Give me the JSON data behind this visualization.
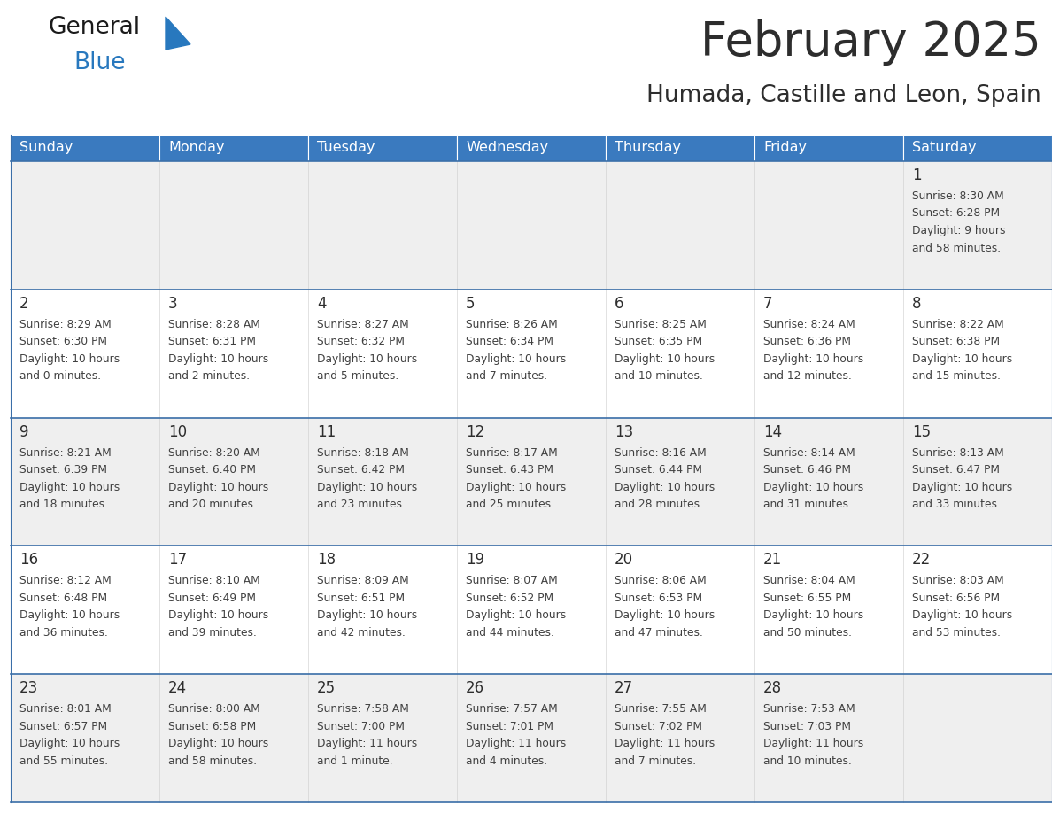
{
  "title": "February 2025",
  "subtitle": "Humada, Castille and Leon, Spain",
  "title_color": "#2d2d2d",
  "subtitle_color": "#2d2d2d",
  "header_bg_color": "#3a7abf",
  "header_text_color": "#ffffff",
  "day_names": [
    "Sunday",
    "Monday",
    "Tuesday",
    "Wednesday",
    "Thursday",
    "Friday",
    "Saturday"
  ],
  "odd_row_bg": "#efefef",
  "even_row_bg": "#ffffff",
  "cell_border_color": "#3a6ea8",
  "date_color": "#2d2d2d",
  "info_color": "#404040",
  "logo_general_color": "#1a1a1a",
  "logo_blue_color": "#2878be",
  "calendar_data": [
    [
      null,
      null,
      null,
      null,
      null,
      null,
      {
        "day": "1",
        "sunrise": "8:30 AM",
        "sunset": "6:28 PM",
        "daylight_line1": "Daylight: 9 hours",
        "daylight_line2": "and 58 minutes."
      }
    ],
    [
      {
        "day": "2",
        "sunrise": "8:29 AM",
        "sunset": "6:30 PM",
        "daylight_line1": "Daylight: 10 hours",
        "daylight_line2": "and 0 minutes."
      },
      {
        "day": "3",
        "sunrise": "8:28 AM",
        "sunset": "6:31 PM",
        "daylight_line1": "Daylight: 10 hours",
        "daylight_line2": "and 2 minutes."
      },
      {
        "day": "4",
        "sunrise": "8:27 AM",
        "sunset": "6:32 PM",
        "daylight_line1": "Daylight: 10 hours",
        "daylight_line2": "and 5 minutes."
      },
      {
        "day": "5",
        "sunrise": "8:26 AM",
        "sunset": "6:34 PM",
        "daylight_line1": "Daylight: 10 hours",
        "daylight_line2": "and 7 minutes."
      },
      {
        "day": "6",
        "sunrise": "8:25 AM",
        "sunset": "6:35 PM",
        "daylight_line1": "Daylight: 10 hours",
        "daylight_line2": "and 10 minutes."
      },
      {
        "day": "7",
        "sunrise": "8:24 AM",
        "sunset": "6:36 PM",
        "daylight_line1": "Daylight: 10 hours",
        "daylight_line2": "and 12 minutes."
      },
      {
        "day": "8",
        "sunrise": "8:22 AM",
        "sunset": "6:38 PM",
        "daylight_line1": "Daylight: 10 hours",
        "daylight_line2": "and 15 minutes."
      }
    ],
    [
      {
        "day": "9",
        "sunrise": "8:21 AM",
        "sunset": "6:39 PM",
        "daylight_line1": "Daylight: 10 hours",
        "daylight_line2": "and 18 minutes."
      },
      {
        "day": "10",
        "sunrise": "8:20 AM",
        "sunset": "6:40 PM",
        "daylight_line1": "Daylight: 10 hours",
        "daylight_line2": "and 20 minutes."
      },
      {
        "day": "11",
        "sunrise": "8:18 AM",
        "sunset": "6:42 PM",
        "daylight_line1": "Daylight: 10 hours",
        "daylight_line2": "and 23 minutes."
      },
      {
        "day": "12",
        "sunrise": "8:17 AM",
        "sunset": "6:43 PM",
        "daylight_line1": "Daylight: 10 hours",
        "daylight_line2": "and 25 minutes."
      },
      {
        "day": "13",
        "sunrise": "8:16 AM",
        "sunset": "6:44 PM",
        "daylight_line1": "Daylight: 10 hours",
        "daylight_line2": "and 28 minutes."
      },
      {
        "day": "14",
        "sunrise": "8:14 AM",
        "sunset": "6:46 PM",
        "daylight_line1": "Daylight: 10 hours",
        "daylight_line2": "and 31 minutes."
      },
      {
        "day": "15",
        "sunrise": "8:13 AM",
        "sunset": "6:47 PM",
        "daylight_line1": "Daylight: 10 hours",
        "daylight_line2": "and 33 minutes."
      }
    ],
    [
      {
        "day": "16",
        "sunrise": "8:12 AM",
        "sunset": "6:48 PM",
        "daylight_line1": "Daylight: 10 hours",
        "daylight_line2": "and 36 minutes."
      },
      {
        "day": "17",
        "sunrise": "8:10 AM",
        "sunset": "6:49 PM",
        "daylight_line1": "Daylight: 10 hours",
        "daylight_line2": "and 39 minutes."
      },
      {
        "day": "18",
        "sunrise": "8:09 AM",
        "sunset": "6:51 PM",
        "daylight_line1": "Daylight: 10 hours",
        "daylight_line2": "and 42 minutes."
      },
      {
        "day": "19",
        "sunrise": "8:07 AM",
        "sunset": "6:52 PM",
        "daylight_line1": "Daylight: 10 hours",
        "daylight_line2": "and 44 minutes."
      },
      {
        "day": "20",
        "sunrise": "8:06 AM",
        "sunset": "6:53 PM",
        "daylight_line1": "Daylight: 10 hours",
        "daylight_line2": "and 47 minutes."
      },
      {
        "day": "21",
        "sunrise": "8:04 AM",
        "sunset": "6:55 PM",
        "daylight_line1": "Daylight: 10 hours",
        "daylight_line2": "and 50 minutes."
      },
      {
        "day": "22",
        "sunrise": "8:03 AM",
        "sunset": "6:56 PM",
        "daylight_line1": "Daylight: 10 hours",
        "daylight_line2": "and 53 minutes."
      }
    ],
    [
      {
        "day": "23",
        "sunrise": "8:01 AM",
        "sunset": "6:57 PM",
        "daylight_line1": "Daylight: 10 hours",
        "daylight_line2": "and 55 minutes."
      },
      {
        "day": "24",
        "sunrise": "8:00 AM",
        "sunset": "6:58 PM",
        "daylight_line1": "Daylight: 10 hours",
        "daylight_line2": "and 58 minutes."
      },
      {
        "day": "25",
        "sunrise": "7:58 AM",
        "sunset": "7:00 PM",
        "daylight_line1": "Daylight: 11 hours",
        "daylight_line2": "and 1 minute."
      },
      {
        "day": "26",
        "sunrise": "7:57 AM",
        "sunset": "7:01 PM",
        "daylight_line1": "Daylight: 11 hours",
        "daylight_line2": "and 4 minutes."
      },
      {
        "day": "27",
        "sunrise": "7:55 AM",
        "sunset": "7:02 PM",
        "daylight_line1": "Daylight: 11 hours",
        "daylight_line2": "and 7 minutes."
      },
      {
        "day": "28",
        "sunrise": "7:53 AM",
        "sunset": "7:03 PM",
        "daylight_line1": "Daylight: 11 hours",
        "daylight_line2": "and 10 minutes."
      },
      null
    ]
  ],
  "figsize": [
    11.88,
    9.18
  ],
  "dpi": 100
}
